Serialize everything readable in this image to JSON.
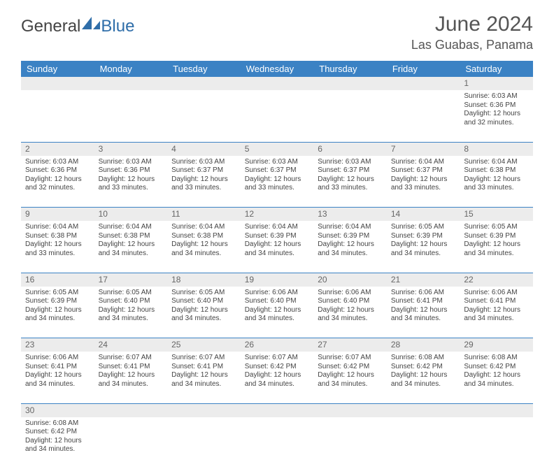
{
  "brand": {
    "part1": "General",
    "part2": "Blue"
  },
  "title": "June 2024",
  "location": "Las Guabas, Panama",
  "colors": {
    "header_bg": "#3b82c4",
    "header_text": "#ffffff",
    "daynum_bg": "#ececec",
    "border": "#3b82c4",
    "body_text": "#444444",
    "title_text": "#555555",
    "brand_accent": "#2f6ea9"
  },
  "weekdays": [
    "Sunday",
    "Monday",
    "Tuesday",
    "Wednesday",
    "Thursday",
    "Friday",
    "Saturday"
  ],
  "weeks": [
    {
      "nums": [
        "",
        "",
        "",
        "",
        "",
        "",
        "1"
      ],
      "cells": [
        null,
        null,
        null,
        null,
        null,
        null,
        {
          "sunrise": "Sunrise: 6:03 AM",
          "sunset": "Sunset: 6:36 PM",
          "d1": "Daylight: 12 hours",
          "d2": "and 32 minutes."
        }
      ]
    },
    {
      "nums": [
        "2",
        "3",
        "4",
        "5",
        "6",
        "7",
        "8"
      ],
      "cells": [
        {
          "sunrise": "Sunrise: 6:03 AM",
          "sunset": "Sunset: 6:36 PM",
          "d1": "Daylight: 12 hours",
          "d2": "and 32 minutes."
        },
        {
          "sunrise": "Sunrise: 6:03 AM",
          "sunset": "Sunset: 6:36 PM",
          "d1": "Daylight: 12 hours",
          "d2": "and 33 minutes."
        },
        {
          "sunrise": "Sunrise: 6:03 AM",
          "sunset": "Sunset: 6:37 PM",
          "d1": "Daylight: 12 hours",
          "d2": "and 33 minutes."
        },
        {
          "sunrise": "Sunrise: 6:03 AM",
          "sunset": "Sunset: 6:37 PM",
          "d1": "Daylight: 12 hours",
          "d2": "and 33 minutes."
        },
        {
          "sunrise": "Sunrise: 6:03 AM",
          "sunset": "Sunset: 6:37 PM",
          "d1": "Daylight: 12 hours",
          "d2": "and 33 minutes."
        },
        {
          "sunrise": "Sunrise: 6:04 AM",
          "sunset": "Sunset: 6:37 PM",
          "d1": "Daylight: 12 hours",
          "d2": "and 33 minutes."
        },
        {
          "sunrise": "Sunrise: 6:04 AM",
          "sunset": "Sunset: 6:38 PM",
          "d1": "Daylight: 12 hours",
          "d2": "and 33 minutes."
        }
      ]
    },
    {
      "nums": [
        "9",
        "10",
        "11",
        "12",
        "13",
        "14",
        "15"
      ],
      "cells": [
        {
          "sunrise": "Sunrise: 6:04 AM",
          "sunset": "Sunset: 6:38 PM",
          "d1": "Daylight: 12 hours",
          "d2": "and 33 minutes."
        },
        {
          "sunrise": "Sunrise: 6:04 AM",
          "sunset": "Sunset: 6:38 PM",
          "d1": "Daylight: 12 hours",
          "d2": "and 34 minutes."
        },
        {
          "sunrise": "Sunrise: 6:04 AM",
          "sunset": "Sunset: 6:38 PM",
          "d1": "Daylight: 12 hours",
          "d2": "and 34 minutes."
        },
        {
          "sunrise": "Sunrise: 6:04 AM",
          "sunset": "Sunset: 6:39 PM",
          "d1": "Daylight: 12 hours",
          "d2": "and 34 minutes."
        },
        {
          "sunrise": "Sunrise: 6:04 AM",
          "sunset": "Sunset: 6:39 PM",
          "d1": "Daylight: 12 hours",
          "d2": "and 34 minutes."
        },
        {
          "sunrise": "Sunrise: 6:05 AM",
          "sunset": "Sunset: 6:39 PM",
          "d1": "Daylight: 12 hours",
          "d2": "and 34 minutes."
        },
        {
          "sunrise": "Sunrise: 6:05 AM",
          "sunset": "Sunset: 6:39 PM",
          "d1": "Daylight: 12 hours",
          "d2": "and 34 minutes."
        }
      ]
    },
    {
      "nums": [
        "16",
        "17",
        "18",
        "19",
        "20",
        "21",
        "22"
      ],
      "cells": [
        {
          "sunrise": "Sunrise: 6:05 AM",
          "sunset": "Sunset: 6:39 PM",
          "d1": "Daylight: 12 hours",
          "d2": "and 34 minutes."
        },
        {
          "sunrise": "Sunrise: 6:05 AM",
          "sunset": "Sunset: 6:40 PM",
          "d1": "Daylight: 12 hours",
          "d2": "and 34 minutes."
        },
        {
          "sunrise": "Sunrise: 6:05 AM",
          "sunset": "Sunset: 6:40 PM",
          "d1": "Daylight: 12 hours",
          "d2": "and 34 minutes."
        },
        {
          "sunrise": "Sunrise: 6:06 AM",
          "sunset": "Sunset: 6:40 PM",
          "d1": "Daylight: 12 hours",
          "d2": "and 34 minutes."
        },
        {
          "sunrise": "Sunrise: 6:06 AM",
          "sunset": "Sunset: 6:40 PM",
          "d1": "Daylight: 12 hours",
          "d2": "and 34 minutes."
        },
        {
          "sunrise": "Sunrise: 6:06 AM",
          "sunset": "Sunset: 6:41 PM",
          "d1": "Daylight: 12 hours",
          "d2": "and 34 minutes."
        },
        {
          "sunrise": "Sunrise: 6:06 AM",
          "sunset": "Sunset: 6:41 PM",
          "d1": "Daylight: 12 hours",
          "d2": "and 34 minutes."
        }
      ]
    },
    {
      "nums": [
        "23",
        "24",
        "25",
        "26",
        "27",
        "28",
        "29"
      ],
      "cells": [
        {
          "sunrise": "Sunrise: 6:06 AM",
          "sunset": "Sunset: 6:41 PM",
          "d1": "Daylight: 12 hours",
          "d2": "and 34 minutes."
        },
        {
          "sunrise": "Sunrise: 6:07 AM",
          "sunset": "Sunset: 6:41 PM",
          "d1": "Daylight: 12 hours",
          "d2": "and 34 minutes."
        },
        {
          "sunrise": "Sunrise: 6:07 AM",
          "sunset": "Sunset: 6:41 PM",
          "d1": "Daylight: 12 hours",
          "d2": "and 34 minutes."
        },
        {
          "sunrise": "Sunrise: 6:07 AM",
          "sunset": "Sunset: 6:42 PM",
          "d1": "Daylight: 12 hours",
          "d2": "and 34 minutes."
        },
        {
          "sunrise": "Sunrise: 6:07 AM",
          "sunset": "Sunset: 6:42 PM",
          "d1": "Daylight: 12 hours",
          "d2": "and 34 minutes."
        },
        {
          "sunrise": "Sunrise: 6:08 AM",
          "sunset": "Sunset: 6:42 PM",
          "d1": "Daylight: 12 hours",
          "d2": "and 34 minutes."
        },
        {
          "sunrise": "Sunrise: 6:08 AM",
          "sunset": "Sunset: 6:42 PM",
          "d1": "Daylight: 12 hours",
          "d2": "and 34 minutes."
        }
      ]
    },
    {
      "nums": [
        "30",
        "",
        "",
        "",
        "",
        "",
        ""
      ],
      "cells": [
        {
          "sunrise": "Sunrise: 6:08 AM",
          "sunset": "Sunset: 6:42 PM",
          "d1": "Daylight: 12 hours",
          "d2": "and 34 minutes."
        },
        null,
        null,
        null,
        null,
        null,
        null
      ]
    }
  ]
}
